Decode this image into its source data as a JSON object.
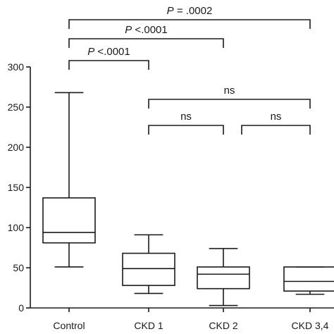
{
  "chart_data": {
    "type": "boxplot",
    "title": "",
    "xlabel": "",
    "ylabel": "",
    "ylim": [
      0,
      300
    ],
    "yticks": [
      0,
      50,
      100,
      150,
      200,
      250,
      300
    ],
    "categories": [
      "Control",
      "CKD 1",
      "CKD 2",
      "CKD 3,4"
    ],
    "boxes": [
      {
        "category": "Control",
        "min": 51,
        "q1": 81,
        "median": 94,
        "q3": 137,
        "max": 268
      },
      {
        "category": "CKD 1",
        "min": 18,
        "q1": 28,
        "median": 49,
        "q3": 68,
        "max": 91
      },
      {
        "category": "CKD 2",
        "min": 3,
        "q1": 24,
        "median": 42,
        "q3": 51,
        "max": 74
      },
      {
        "category": "CKD 3,4",
        "min": 17,
        "q1": 21,
        "median": 33,
        "q3": 51,
        "max": 51
      }
    ],
    "significance": [
      {
        "from": "Control",
        "to": "CKD 3,4",
        "prefix": "P",
        "text": " = .0002"
      },
      {
        "from": "Control",
        "to": "CKD 2",
        "prefix": "P",
        "text": " <.0001"
      },
      {
        "from": "Control",
        "to": "CKD 1",
        "prefix": "P",
        "text": " <.0001"
      },
      {
        "from": "CKD 1",
        "to": "CKD 3,4",
        "prefix": "",
        "text": "ns"
      },
      {
        "from": "CKD 1",
        "to": "CKD 2",
        "prefix": "",
        "text": "ns"
      },
      {
        "from": "CKD 2",
        "to": "CKD 3,4",
        "prefix": "",
        "text": "ns"
      }
    ]
  }
}
